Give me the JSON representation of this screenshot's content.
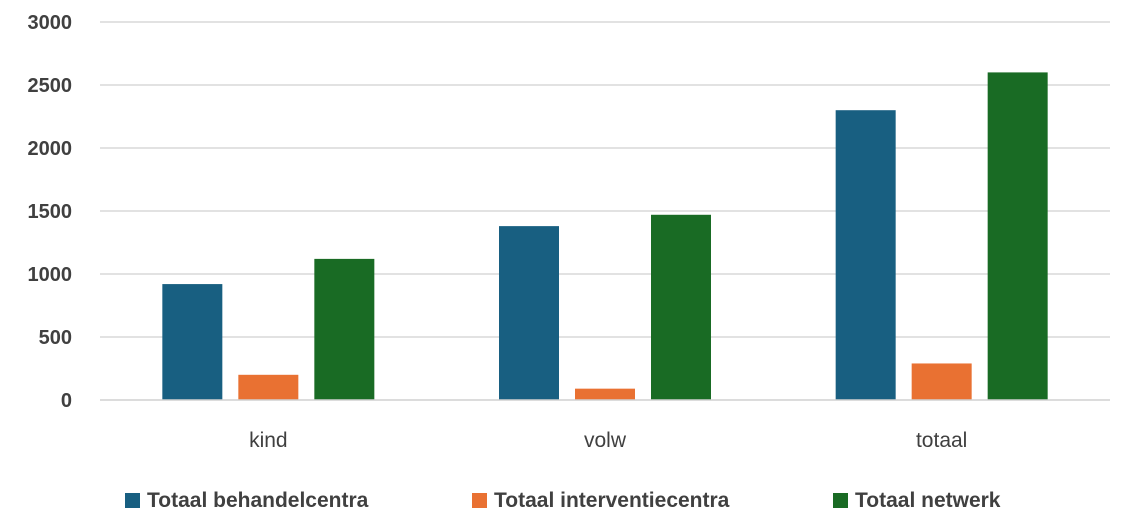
{
  "chart_data": {
    "type": "bar",
    "title": "",
    "xlabel": "",
    "ylabel": "",
    "categories": [
      "kind",
      "volw",
      "totaal"
    ],
    "series": [
      {
        "name": "Totaal behandelcentra",
        "values": [
          920,
          1380,
          2300
        ],
        "color": "#185F81"
      },
      {
        "name": "Totaal interventiecentra",
        "values": [
          200,
          90,
          290
        ],
        "color": "#E97132"
      },
      {
        "name": "Totaal netwerk",
        "values": [
          1120,
          1470,
          2600
        ],
        "color": "#196B24"
      }
    ],
    "ylim": [
      0,
      3000
    ],
    "yticks": [
      "0",
      "500",
      "1000",
      "1500",
      "2000",
      "2500",
      "3000"
    ],
    "grid": true,
    "legend_position": "bottom"
  }
}
